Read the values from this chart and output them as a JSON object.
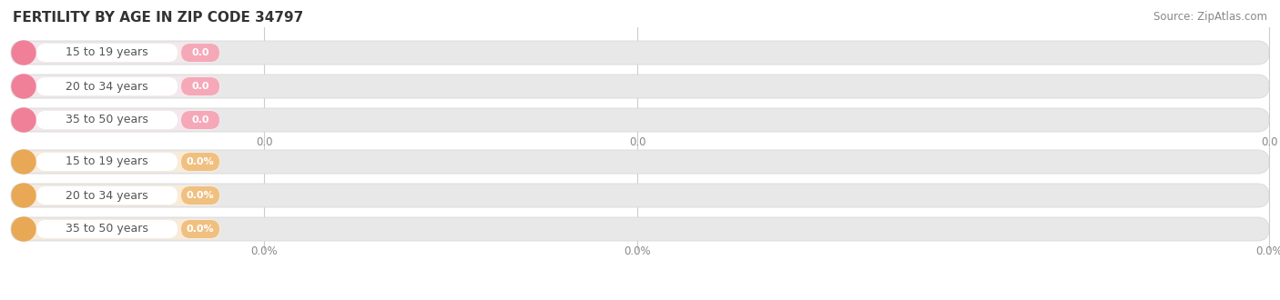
{
  "title": "FERTILITY BY AGE IN ZIP CODE 34797",
  "source": "Source: ZipAtlas.com",
  "top_categories": [
    "15 to 19 years",
    "20 to 34 years",
    "35 to 50 years"
  ],
  "bottom_categories": [
    "15 to 19 years",
    "20 to 34 years",
    "35 to 50 years"
  ],
  "top_value_labels": [
    "0.0",
    "0.0",
    "0.0"
  ],
  "bottom_value_labels": [
    "0.0%",
    "0.0%",
    "0.0%"
  ],
  "top_xticks": [
    "0.0",
    "0.0",
    "0.0"
  ],
  "bottom_xticks": [
    "0.0%",
    "0.0%",
    "0.0%"
  ],
  "top_dot_color": "#f08098",
  "top_badge_color": "#f5a8b8",
  "top_track_bg": "#f5e8ec",
  "bottom_dot_color": "#e8a855",
  "bottom_badge_color": "#f0c080",
  "bottom_track_bg": "#faebd8",
  "track_outer_color": "#e8e8e8",
  "track_outer_edge": "#d8d8d8",
  "label_bg": "#ffffff",
  "title_color": "#333333",
  "source_color": "#888888",
  "tick_color": "#888888",
  "label_text_color": "#555555",
  "value_text_color": "#ffffff",
  "gridline_color": "#cccccc",
  "background_color": "#ffffff"
}
